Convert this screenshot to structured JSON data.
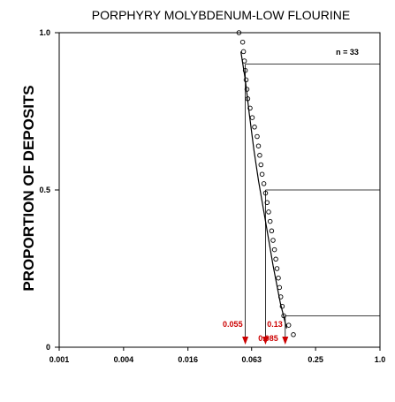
{
  "chart_data": {
    "type": "scatter",
    "title": "PORPHYRY MOLYBDENUM-LOW FLOURINE",
    "xlabel": "",
    "ylabel": "PROPORTION OF DEPOSITS",
    "x_scale": "log",
    "xlim": [
      0.001,
      1.0
    ],
    "ylim": [
      0,
      1.0
    ],
    "x_ticks": [
      0.001,
      0.004,
      0.016,
      0.063,
      0.25,
      1.0
    ],
    "x_tick_labels": [
      "0.001",
      "0.004",
      "0.016",
      "0.063",
      "0.25",
      "1.0"
    ],
    "y_ticks": [
      0,
      0.5,
      1.0
    ],
    "y_tick_labels": [
      "0",
      "0.5",
      "1.0"
    ],
    "grid": false,
    "n_label": "n = 33",
    "points": [
      {
        "x": 0.048,
        "y": 1.0
      },
      {
        "x": 0.052,
        "y": 0.97
      },
      {
        "x": 0.053,
        "y": 0.94
      },
      {
        "x": 0.054,
        "y": 0.91
      },
      {
        "x": 0.055,
        "y": 0.88
      },
      {
        "x": 0.056,
        "y": 0.85
      },
      {
        "x": 0.057,
        "y": 0.82
      },
      {
        "x": 0.058,
        "y": 0.79
      },
      {
        "x": 0.061,
        "y": 0.76
      },
      {
        "x": 0.064,
        "y": 0.73
      },
      {
        "x": 0.067,
        "y": 0.7
      },
      {
        "x": 0.071,
        "y": 0.67
      },
      {
        "x": 0.073,
        "y": 0.64
      },
      {
        "x": 0.075,
        "y": 0.61
      },
      {
        "x": 0.077,
        "y": 0.58
      },
      {
        "x": 0.079,
        "y": 0.55
      },
      {
        "x": 0.082,
        "y": 0.52
      },
      {
        "x": 0.085,
        "y": 0.49
      },
      {
        "x": 0.088,
        "y": 0.46
      },
      {
        "x": 0.091,
        "y": 0.43
      },
      {
        "x": 0.094,
        "y": 0.4
      },
      {
        "x": 0.097,
        "y": 0.37
      },
      {
        "x": 0.1,
        "y": 0.34
      },
      {
        "x": 0.103,
        "y": 0.31
      },
      {
        "x": 0.106,
        "y": 0.28
      },
      {
        "x": 0.109,
        "y": 0.25
      },
      {
        "x": 0.112,
        "y": 0.22
      },
      {
        "x": 0.115,
        "y": 0.19
      },
      {
        "x": 0.118,
        "y": 0.16
      },
      {
        "x": 0.122,
        "y": 0.13
      },
      {
        "x": 0.126,
        "y": 0.1
      },
      {
        "x": 0.14,
        "y": 0.07
      },
      {
        "x": 0.155,
        "y": 0.04
      }
    ],
    "fit_curve": [
      {
        "x": 0.05,
        "y": 0.94
      },
      {
        "x": 0.055,
        "y": 0.85
      },
      {
        "x": 0.06,
        "y": 0.74
      },
      {
        "x": 0.066,
        "y": 0.63
      },
      {
        "x": 0.073,
        "y": 0.53
      },
      {
        "x": 0.085,
        "y": 0.4
      },
      {
        "x": 0.1,
        "y": 0.26
      },
      {
        "x": 0.117,
        "y": 0.14
      },
      {
        "x": 0.134,
        "y": 0.06
      }
    ],
    "percentile_lines": [
      {
        "y": 0.9,
        "x": 0.055,
        "label": "0.055"
      },
      {
        "y": 0.5,
        "x": 0.085,
        "label": "0.085"
      },
      {
        "y": 0.1,
        "x": 0.13,
        "label": "0.13"
      }
    ],
    "colors": {
      "axis": "#000000",
      "points": "#000000",
      "markers": "#cc0000"
    }
  }
}
